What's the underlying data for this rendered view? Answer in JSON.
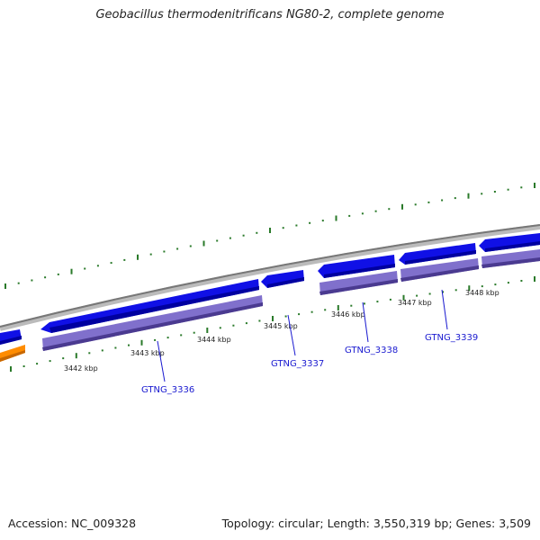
{
  "title": "Geobacillus thermodenitrificans NG80-2, complete genome",
  "footer": {
    "accession": "Accession: NC_009328",
    "summary": "Topology: circular; Length: 3,550,319 bp; Genes: 3,509"
  },
  "colors": {
    "forward_gene": "#1010e6",
    "cds_feature": "#8070cc",
    "backbone": "#888888",
    "ticks": "#2a7a2a",
    "orange_feature": "#ff8c00",
    "label": "#1a1ad0"
  },
  "kbp_ticks": [
    "3442 kbp",
    "3443 kbp",
    "3444 kbp",
    "3445 kbp",
    "3446 kbp",
    "3447 kbp",
    "3448 kbp"
  ],
  "genes": [
    "GTNG_3336",
    "GTNG_3337",
    "GTNG_3338",
    "GTNG_3339"
  ]
}
